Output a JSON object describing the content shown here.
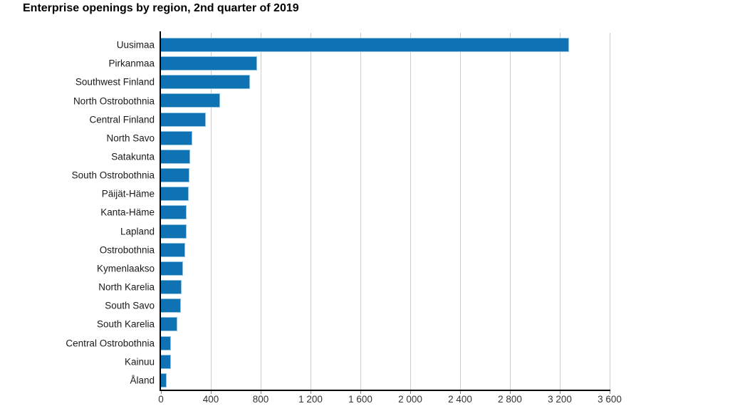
{
  "title": "Enterprise openings by region, 2nd quarter of 2019",
  "colors": {
    "bar": "#0f72b2",
    "bar_edge": "#8fc2e0",
    "grid": "#cccccc",
    "axis": "#000000",
    "tick_text": "#333333",
    "label_text": "#1a1a1a",
    "background": "#ffffff"
  },
  "chart_data": {
    "type": "bar",
    "orientation": "horizontal",
    "title": "Enterprise openings by region, 2nd quarter of 2019",
    "categories": [
      "Uusimaa",
      "Pirkanmaa",
      "Southwest Finland",
      "North Ostrobothnia",
      "Central Finland",
      "North Savo",
      "Satakunta",
      "South Ostrobothnia",
      "Päijät-Häme",
      "Kanta-Häme",
      "Lapland",
      "Ostrobothnia",
      "Kymenlaakso",
      "North Karelia",
      "South Savo",
      "South Karelia",
      "Central Ostrobothnia",
      "Kainuu",
      "Åland"
    ],
    "values": [
      3273,
      771,
      714,
      476,
      362,
      253,
      235,
      226,
      222,
      208,
      204,
      196,
      177,
      168,
      162,
      130,
      80,
      78,
      46
    ],
    "xlabel": "",
    "ylabel": "",
    "xlim": [
      0,
      3600
    ],
    "x_ticks": [
      0,
      400,
      800,
      1200,
      1600,
      2000,
      2400,
      2800,
      3200,
      3600
    ],
    "x_tick_labels": [
      "0",
      "400",
      "800",
      "1 200",
      "1 600",
      "2 000",
      "2 400",
      "2 800",
      "3 200",
      "3 600"
    ],
    "grid": "vertical-gridlines-on",
    "legend": "none"
  }
}
